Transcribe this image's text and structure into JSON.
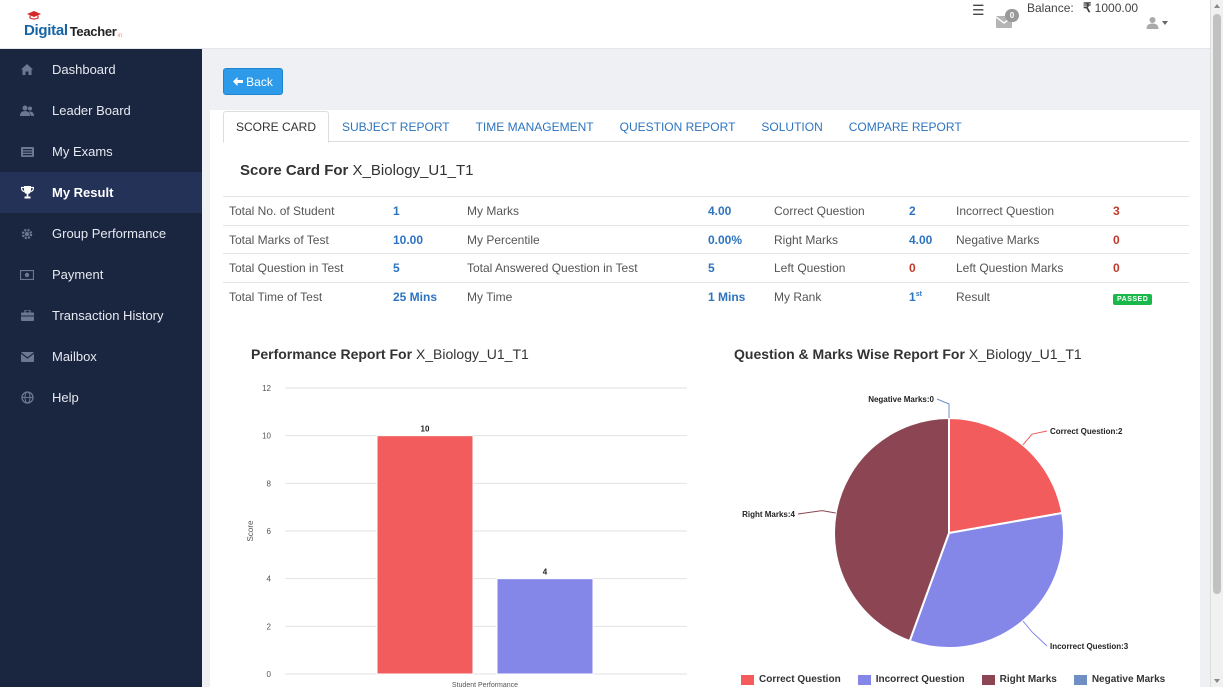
{
  "header": {
    "logo_text_1": "Digital",
    "logo_text_2": "Teacher",
    "logo_text_3": "in",
    "mail_count": "0",
    "balance_label": "Balance:",
    "currency_symbol": "₹",
    "balance_amount": "1000.00"
  },
  "sidebar": {
    "items": [
      {
        "label": "Dashboard",
        "icon": "home-icon"
      },
      {
        "label": "Leader Board",
        "icon": "users-icon"
      },
      {
        "label": "My Exams",
        "icon": "list-icon"
      },
      {
        "label": "My Result",
        "icon": "trophy-icon",
        "active": true
      },
      {
        "label": "Group Performance",
        "icon": "gear-icon"
      },
      {
        "label": "Payment",
        "icon": "money-icon"
      },
      {
        "label": "Transaction History",
        "icon": "briefcase-icon"
      },
      {
        "label": "Mailbox",
        "icon": "envelope-icon"
      },
      {
        "label": "Help",
        "icon": "globe-icon"
      }
    ]
  },
  "back_label": "Back",
  "tabs": [
    "SCORE CARD",
    "SUBJECT REPORT",
    "TIME MANAGEMENT",
    "QUESTION REPORT",
    "SOLUTION",
    "COMPARE REPORT"
  ],
  "score_card": {
    "title_bold": "Score Card For",
    "title_rest": "X_Biology_U1_T1",
    "rows": [
      [
        "Total No. of Student",
        "1",
        "My Marks",
        "4.00",
        "Correct Question",
        "2",
        "Incorrect Question",
        "3"
      ],
      [
        "Total Marks of Test",
        "10.00",
        "My Percentile",
        "0.00%",
        "Right Marks",
        "4.00",
        "Negative Marks",
        "0"
      ],
      [
        "Total Question in Test",
        "5",
        "Total Answered Question in Test",
        "5",
        "Left Question",
        "0",
        "Left Question Marks",
        "0"
      ],
      [
        "Total Time of Test",
        "25 Mins",
        "My Time",
        "1 Mins",
        "My Rank",
        "1",
        "Result",
        "PASSED"
      ]
    ],
    "rank_suffix": "st"
  },
  "performance": {
    "title_bold": "Performance Report For",
    "title_rest": "X_Biology_U1_T1"
  },
  "question_report": {
    "title_bold": "Question & Marks Wise Report For",
    "title_rest": "X_Biology_U1_T1"
  },
  "colors": {
    "red": "#f25c5c",
    "blue": "#8487e8",
    "maroon": "#8b4553",
    "steel": "#6f8fc4",
    "link": "#2d74c0",
    "sidebar": "#1a2540"
  },
  "chart_data": [
    {
      "type": "bar",
      "ylabel": "Score",
      "xlabel": "Student Performance",
      "yticks": [
        0,
        2,
        4,
        6,
        8,
        10,
        12
      ],
      "ylim": [
        0,
        12
      ],
      "values": [
        10,
        4
      ],
      "bar_colors": [
        "#f25c5c",
        "#8487e8"
      ],
      "data_labels": [
        "10",
        "4"
      ],
      "grid": true
    },
    {
      "type": "pie",
      "slices": [
        {
          "label": "Correct Question:2",
          "name": "Correct Question",
          "value": 2,
          "color": "#f25c5c"
        },
        {
          "label": "Incorrect Question:3",
          "name": "Incorrect Question",
          "value": 3,
          "color": "#8487e8"
        },
        {
          "label": "Right Marks:4",
          "name": "Right Marks",
          "value": 4,
          "color": "#8b4553"
        },
        {
          "label": "Negative Marks:0",
          "name": "Negative Marks",
          "value": 0,
          "color": "#6f8fc4"
        }
      ],
      "legend_position": "bottom"
    }
  ]
}
